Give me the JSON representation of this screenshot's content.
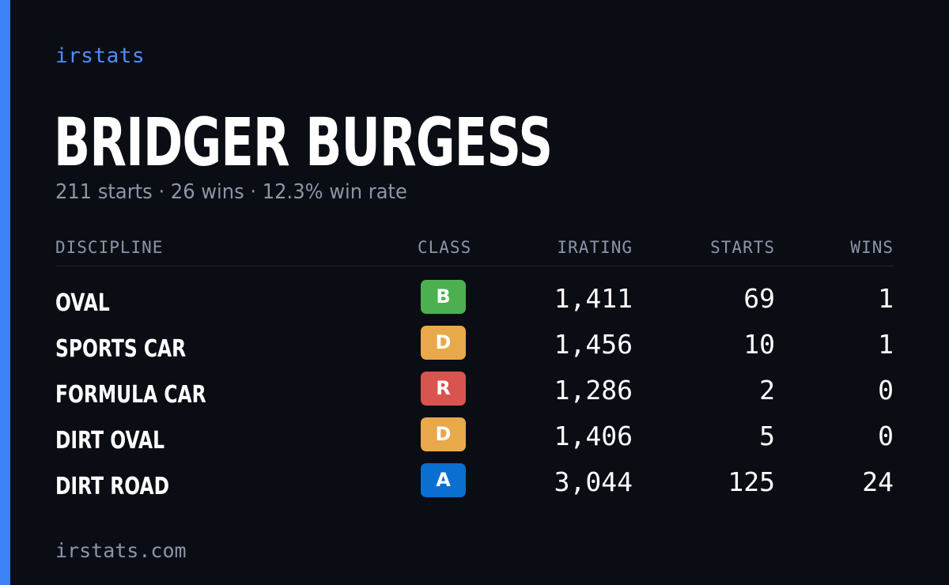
{
  "brand": "irstats",
  "driver": {
    "name": "BRIDGER BURGESS",
    "summary": "211 starts · 26 wins · 12.3% win rate"
  },
  "table": {
    "headers": {
      "discipline": "DISCIPLINE",
      "class": "CLASS",
      "irating": "IRATING",
      "starts": "STARTS",
      "wins": "WINS"
    },
    "rows": [
      {
        "discipline": "OVAL",
        "class": "B",
        "class_color": "#4caf50",
        "irating": "1,411",
        "starts": "69",
        "wins": "1"
      },
      {
        "discipline": "SPORTS CAR",
        "class": "D",
        "class_color": "#e8a94a",
        "irating": "1,456",
        "starts": "10",
        "wins": "1"
      },
      {
        "discipline": "FORMULA CAR",
        "class": "R",
        "class_color": "#d9534f",
        "irating": "1,286",
        "starts": "2",
        "wins": "0"
      },
      {
        "discipline": "DIRT OVAL",
        "class": "D",
        "class_color": "#e8a94a",
        "irating": "1,406",
        "starts": "5",
        "wins": "0"
      },
      {
        "discipline": "DIRT ROAD",
        "class": "A",
        "class_color": "#0a6fd1",
        "irating": "3,044",
        "starts": "125",
        "wins": "24"
      }
    ]
  },
  "footer": "irstats.com",
  "colors": {
    "accent": "#3b82f6",
    "brand": "#4f8ef7",
    "background": "#0a0d14",
    "muted": "#8c95a8"
  }
}
